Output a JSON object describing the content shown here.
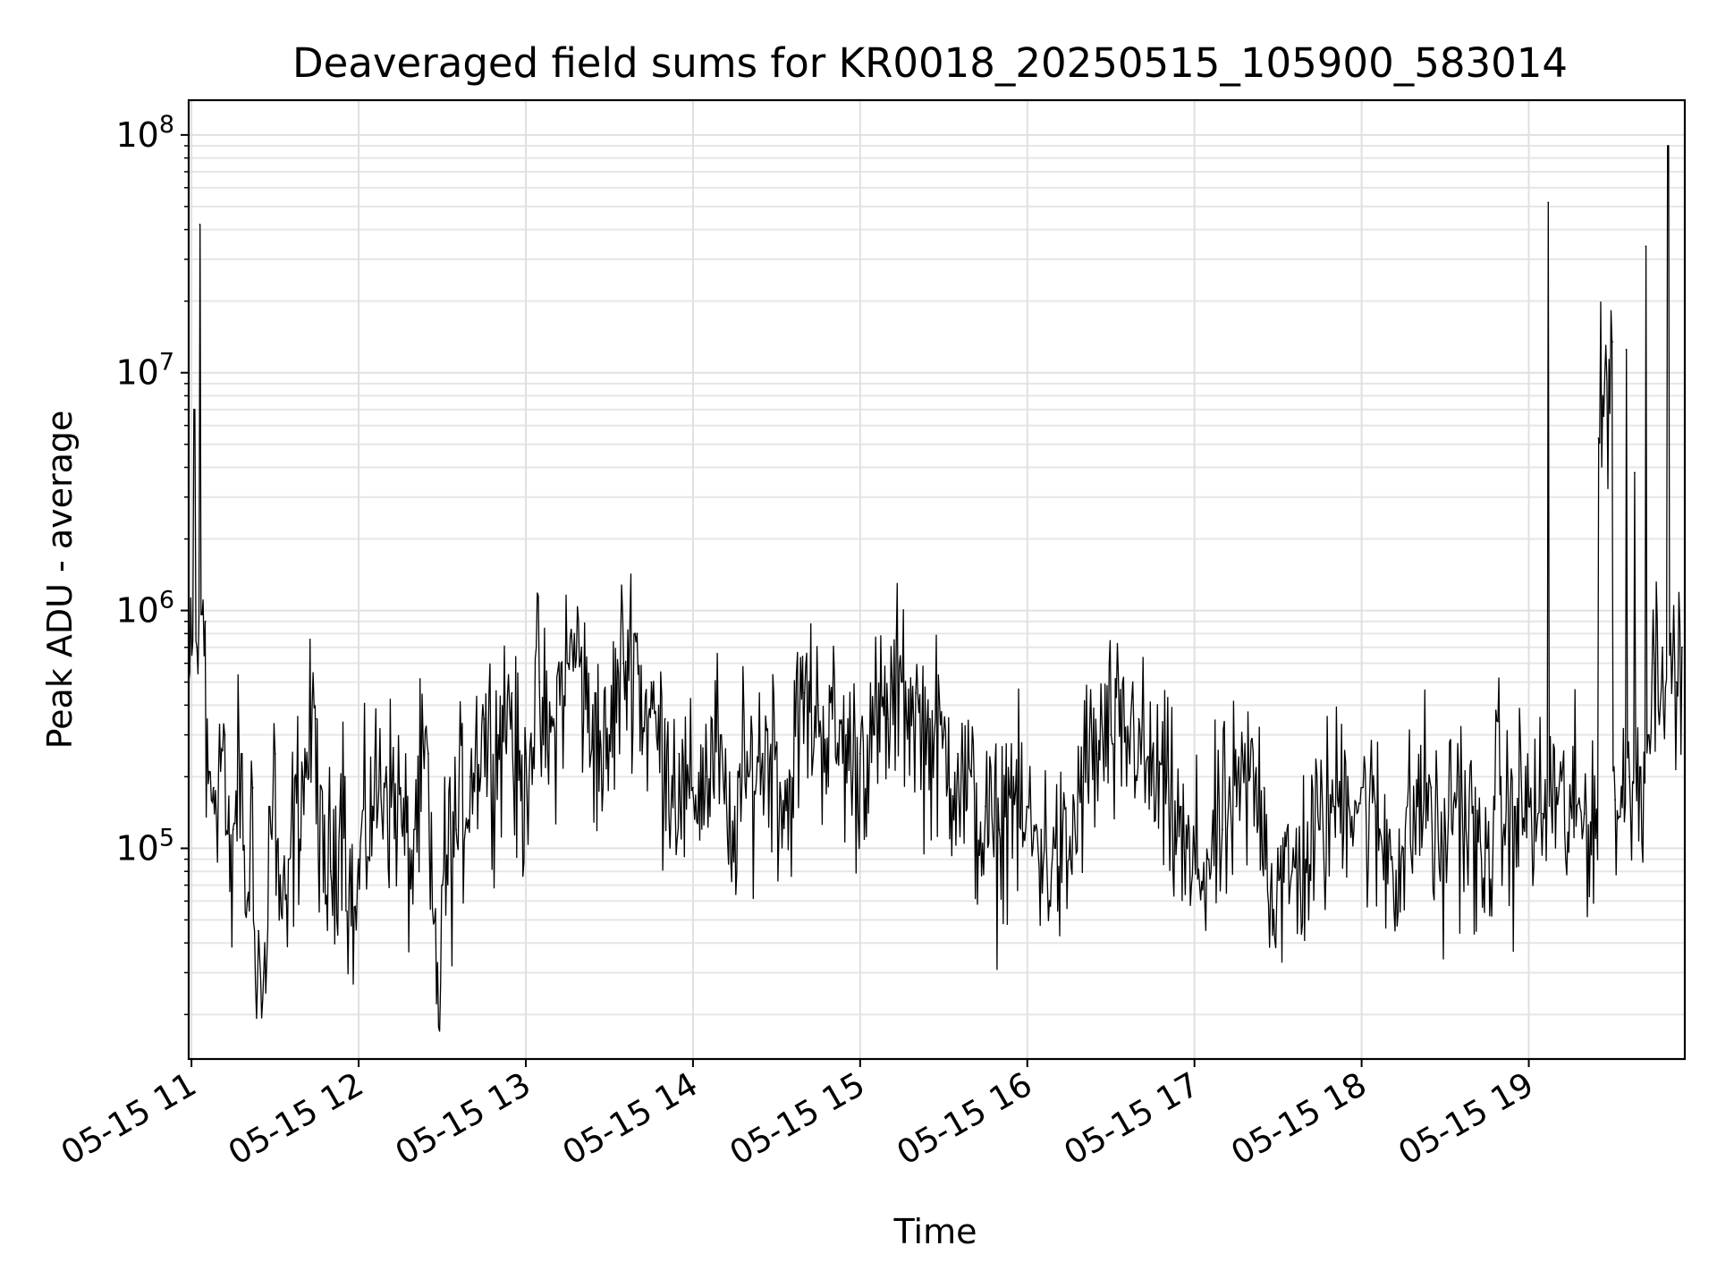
{
  "chart_data": {
    "type": "line",
    "title": "Deaveraged field sums for KR0018_20250515_105900_583014",
    "xlabel": "Time",
    "ylabel": "Peak ADU - average",
    "y_scale": "log",
    "ylim": [
      13000,
      140000000
    ],
    "xlim": [
      "2025-05-15T10:59",
      "2025-05-15T19:56"
    ],
    "grid": true,
    "line_color": "#000000",
    "x_tick_labels": [
      "05-15 11",
      "05-15 12",
      "05-15 13",
      "05-15 14",
      "05-15 15",
      "05-15 16",
      "05-15 17",
      "05-15 18",
      "05-15 19"
    ],
    "x_ticks": [
      "2025-05-15T11:00",
      "2025-05-15T12:00",
      "2025-05-15T13:00",
      "2025-05-15T14:00",
      "2025-05-15T15:00",
      "2025-05-15T16:00",
      "2025-05-15T17:00",
      "2025-05-15T18:00",
      "2025-05-15T19:00"
    ],
    "y_tick_labels": [
      {
        "base": "10",
        "exp": "5",
        "value": 100000
      },
      {
        "base": "10",
        "exp": "6",
        "value": 1000000
      },
      {
        "base": "10",
        "exp": "7",
        "value": 10000000
      },
      {
        "base": "10",
        "exp": "8",
        "value": 100000000
      }
    ],
    "series": [
      {
        "x": [
          "10:59",
          "11:01",
          "11:02",
          "11:03",
          "11:05",
          "11:08",
          "11:12",
          "11:15",
          "11:18",
          "11:20",
          "11:22",
          "11:24",
          "11:26",
          "11:28",
          "11:30",
          "11:35",
          "11:40",
          "11:45",
          "11:50",
          "11:55",
          "12:00",
          "12:05",
          "12:10",
          "12:15",
          "12:20",
          "12:25",
          "12:30",
          "12:35",
          "12:40",
          "12:45",
          "12:50",
          "12:55",
          "13:00",
          "13:05",
          "13:10",
          "13:15",
          "13:20",
          "13:25",
          "13:30",
          "13:35",
          "13:40",
          "13:45",
          "13:50",
          "13:55",
          "14:00",
          "14:05",
          "14:10",
          "14:15",
          "14:20",
          "14:25",
          "14:30",
          "14:35",
          "14:40",
          "14:45",
          "14:50",
          "14:55",
          "15:00",
          "15:05",
          "15:10",
          "15:15",
          "15:20",
          "15:25",
          "15:30",
          "15:35",
          "15:40",
          "15:45",
          "15:50",
          "15:55",
          "16:00",
          "16:05",
          "16:10",
          "16:15",
          "16:20",
          "16:25",
          "16:30",
          "16:35",
          "16:40",
          "16:45",
          "16:50",
          "16:55",
          "17:00",
          "17:05",
          "17:10",
          "17:15",
          "17:20",
          "17:25",
          "17:30",
          "17:35",
          "17:40",
          "17:45",
          "17:50",
          "17:55",
          "18:00",
          "18:05",
          "18:10",
          "18:15",
          "18:20",
          "18:25",
          "18:30",
          "18:35",
          "18:40",
          "18:45",
          "18:50",
          "18:55",
          "19:00",
          "19:05",
          "19:07",
          "19:10",
          "19:15",
          "19:20",
          "19:25",
          "19:30",
          "19:31",
          "19:35",
          "19:36",
          "19:38",
          "19:40",
          "19:42",
          "19:43",
          "19:45",
          "19:48",
          "19:50",
          "19:51",
          "19:53",
          "19:55"
        ],
        "y": [
          500000,
          7000000,
          700000,
          42000000,
          900000,
          180000,
          300000,
          120000,
          250000,
          60000,
          180000,
          45000,
          30000,
          150000,
          250000,
          90000,
          200000,
          350000,
          80000,
          200000,
          90000,
          150000,
          220000,
          180000,
          120000,
          250000,
          70000,
          120000,
          200000,
          350000,
          300000,
          450000,
          250000,
          500000,
          350000,
          600000,
          700000,
          450000,
          300000,
          600000,
          800000,
          500000,
          350000,
          250000,
          180000,
          200000,
          300000,
          150000,
          200000,
          250000,
          280000,
          200000,
          450000,
          400000,
          350000,
          300000,
          250000,
          300000,
          350000,
          500000,
          450000,
          350000,
          300000,
          250000,
          200000,
          150000,
          120000,
          200000,
          150000,
          120000,
          100000,
          90000,
          200000,
          250000,
          300000,
          280000,
          350000,
          250000,
          200000,
          150000,
          100000,
          90000,
          120000,
          150000,
          200000,
          180000,
          100000,
          80000,
          90000,
          120000,
          150000,
          200000,
          180000,
          150000,
          120000,
          100000,
          150000,
          180000,
          120000,
          200000,
          150000,
          100000,
          200000,
          150000,
          150000,
          140000,
          52000000,
          180000,
          150000,
          140000,
          5300000,
          13500000,
          160000,
          12500000,
          200000,
          3800000,
          220000,
          34000000,
          300000,
          600000,
          700000,
          90000000,
          800000,
          500000,
          700000
        ]
      }
    ]
  }
}
